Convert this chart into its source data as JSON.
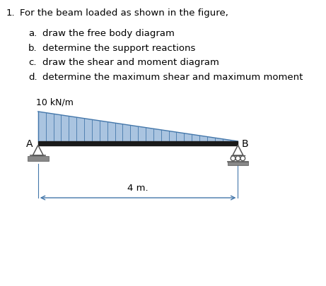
{
  "title_num": "1.",
  "title_text": "For the beam loaded as shown in the figure,",
  "items": [
    [
      "a.",
      "draw the free body diagram"
    ],
    [
      "b.",
      "determine the support reactions"
    ],
    [
      "c.",
      "draw the shear and moment diagram"
    ],
    [
      "d.",
      "determine the maximum shear and maximum moment"
    ]
  ],
  "load_label": "10 kN/m",
  "dimension_label": "4 m.",
  "label_A": "A",
  "label_B": "B",
  "beam_color": "#1a1a1a",
  "load_fill_color": "#aac4e0",
  "load_line_color": "#4477aa",
  "dim_line_color": "#4477aa",
  "background_color": "#ffffff",
  "text_color": "#000000",
  "support_color": "#555555",
  "ground_color": "#888888",
  "fig_width": 4.61,
  "fig_height": 4.06,
  "dpi": 100
}
